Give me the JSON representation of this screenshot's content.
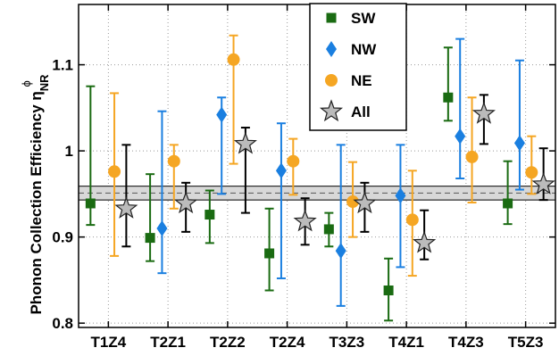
{
  "chart_data": {
    "type": "scatter",
    "ylabel": "Phonon Collection Efficiency η",
    "ylabel_sup": "ϕ",
    "ylabel_sub": "NR",
    "categories": [
      "T1Z4",
      "T2Z1",
      "T2Z2",
      "T2Z4",
      "T3Z3",
      "T4Z1",
      "T4Z3",
      "T5Z3"
    ],
    "ylim": [
      0.795,
      1.17
    ],
    "yticks": [
      0.8,
      0.9,
      1,
      1.1
    ],
    "ytick_labels": [
      "0.8",
      "0.9",
      "1",
      "1.1"
    ],
    "grid": true,
    "legend_position": "top-center",
    "band": {
      "center": 0.951,
      "lower": 0.943,
      "upper": 0.959
    },
    "series": [
      {
        "name": "SW",
        "marker": "square",
        "color": "#1a6b12",
        "values": [
          0.939,
          0.899,
          0.926,
          0.881,
          0.909,
          0.838,
          1.062,
          0.939
        ],
        "lower": [
          0.914,
          0.872,
          0.893,
          0.838,
          0.889,
          0.803,
          1.035,
          0.915
        ],
        "upper": [
          1.075,
          0.973,
          0.954,
          0.933,
          0.928,
          0.875,
          1.12,
          0.988
        ]
      },
      {
        "name": "NW",
        "marker": "diamond",
        "color": "#1a7fe0",
        "values": [
          null,
          0.91,
          1.042,
          0.977,
          0.884,
          0.948,
          1.017,
          1.009
        ],
        "lower": [
          null,
          0.858,
          0.95,
          0.852,
          0.82,
          0.865,
          0.968,
          0.955
        ],
        "upper": [
          null,
          1.046,
          1.062,
          1.032,
          1.007,
          1.007,
          1.13,
          1.105
        ]
      },
      {
        "name": "NE",
        "marker": "circle",
        "color": "#f5a623",
        "values": [
          0.976,
          0.988,
          1.106,
          0.988,
          0.941,
          0.92,
          0.993,
          0.975
        ],
        "lower": [
          0.878,
          0.933,
          0.985,
          0.949,
          0.9,
          0.855,
          0.94,
          0.95
        ],
        "upper": [
          1.067,
          1.007,
          1.134,
          1.014,
          0.987,
          0.977,
          1.062,
          1.017
        ]
      },
      {
        "name": "All",
        "marker": "star",
        "color": "#bbbbbb",
        "values": [
          0.933,
          0.939,
          1.008,
          0.918,
          0.939,
          0.893,
          1.043,
          0.961
        ],
        "lower": [
          0.889,
          0.906,
          0.928,
          0.891,
          0.906,
          0.874,
          1.008,
          0.943
        ],
        "upper": [
          1.007,
          0.963,
          1.027,
          0.945,
          0.963,
          0.931,
          1.065,
          1.003
        ]
      }
    ]
  }
}
